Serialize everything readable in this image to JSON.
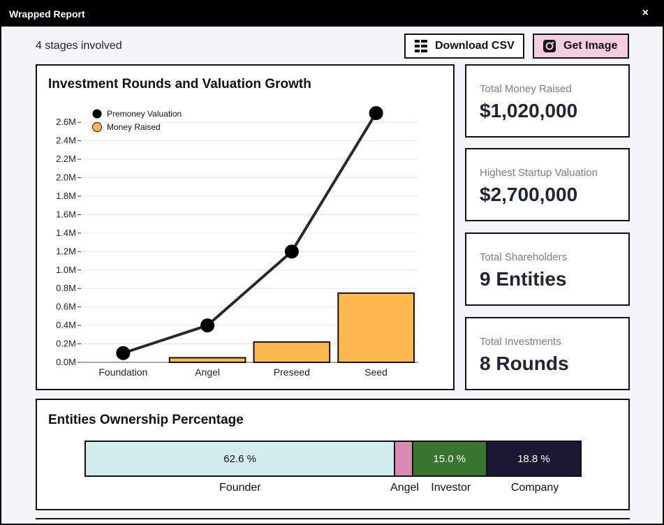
{
  "window": {
    "title": "Wrapped Report",
    "close_label": "×"
  },
  "header": {
    "stages_text": "4 stages involved",
    "download_csv_label": "Download CSV",
    "get_image_label": "Get Image"
  },
  "chart": {
    "title": "Investment Rounds and Valuation Growth",
    "legend": [
      "Premoney Valuation",
      "Money Raised"
    ]
  },
  "chart_data": {
    "type": "bar",
    "title": "Investment Rounds and Valuation Growth",
    "categories": [
      "Foundation",
      "Angel",
      "Preseed",
      "Seed"
    ],
    "series": [
      {
        "name": "Premoney Valuation",
        "type": "line",
        "color": "#222a38",
        "values": [
          100000,
          400000,
          1200000,
          2700000
        ]
      },
      {
        "name": "Money Raised",
        "type": "bar",
        "color": "#ffb84d",
        "values": [
          0,
          50000,
          220000,
          750000
        ]
      }
    ],
    "yticks": [
      "0.0M",
      "0.2M",
      "0.4M",
      "0.6M",
      "0.8M",
      "1.0M",
      "1.2M",
      "1.4M",
      "1.6M",
      "1.8M",
      "2.0M",
      "2.2M",
      "2.4M",
      "2.6M"
    ],
    "ylim": [
      0,
      2700000
    ],
    "grid": true,
    "legend_position": "top-left"
  },
  "stats": [
    {
      "label": "Total Money Raised",
      "value": "$1,020,000"
    },
    {
      "label": "Highest Startup Valuation",
      "value": "$2,700,000"
    },
    {
      "label": "Total Shareholders",
      "value": "9 Entities"
    },
    {
      "label": "Total Investments",
      "value": "8 Rounds"
    }
  ],
  "ownership": {
    "title": "Entities Ownership Percentage",
    "segments": [
      {
        "name": "Founder",
        "percent": 62.6,
        "text": "62.6 %",
        "color": "#d3ecee",
        "text_color": "#111111"
      },
      {
        "name": "Angel",
        "percent": 3.6,
        "text": "",
        "color": "#d98ab4",
        "text_color": "#111111"
      },
      {
        "name": "Investor",
        "percent": 15.0,
        "text": "15.0 %",
        "color": "#3a7530",
        "text_color": "#ffffff"
      },
      {
        "name": "Company",
        "percent": 18.8,
        "text": "18.8 %",
        "color": "#1c1833",
        "text_color": "#ffffff"
      }
    ]
  }
}
